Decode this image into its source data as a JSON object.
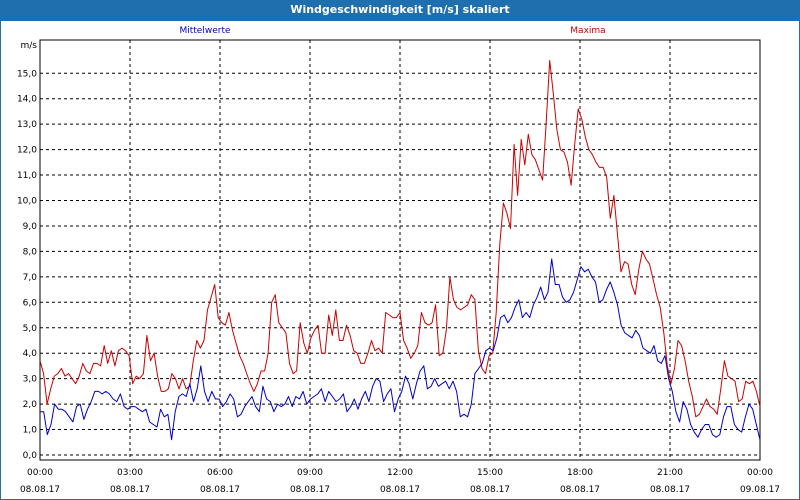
{
  "window": {
    "title": "Windgeschwindigkeit [m/s] skaliert"
  },
  "chart_data": {
    "type": "line",
    "title": "Windgeschwindigkeit [m/s] skaliert",
    "ylabel": "m/s",
    "xlabel": "",
    "ylim": [
      0,
      16
    ],
    "xlim": [
      0,
      24
    ],
    "yticks": [
      "0,0",
      "1,0",
      "2,0",
      "3,0",
      "4,0",
      "5,0",
      "6,0",
      "7,0",
      "8,0",
      "9,0",
      "10,0",
      "11,0",
      "12,0",
      "13,0",
      "14,0",
      "15,0"
    ],
    "xticks": [
      {
        "time": "00:00",
        "date": "08.08.17"
      },
      {
        "time": "03:00",
        "date": "08.08.17"
      },
      {
        "time": "06:00",
        "date": "08.08.17"
      },
      {
        "time": "09:00",
        "date": "08.08.17"
      },
      {
        "time": "12:00",
        "date": "08.08.17"
      },
      {
        "time": "15:00",
        "date": "08.08.17"
      },
      {
        "time": "18:00",
        "date": "08.08.17"
      },
      {
        "time": "21:00",
        "date": "08.08.17"
      },
      {
        "time": "00:00",
        "date": "09.08.17"
      }
    ],
    "grid": true,
    "series": [
      {
        "name": "Mittelwerte",
        "color": "#0000cc",
        "values": [
          1.7,
          1.7,
          0.8,
          1.2,
          2.0,
          1.8,
          1.8,
          1.7,
          1.5,
          1.3,
          1.9,
          2.0,
          1.4,
          1.8,
          2.1,
          2.5,
          2.5,
          2.4,
          2.5,
          2.4,
          2.2,
          2.1,
          2.4,
          1.9,
          1.8,
          1.9,
          1.9,
          1.8,
          1.7,
          1.8,
          1.3,
          1.2,
          1.1,
          1.8,
          1.5,
          1.6,
          0.6,
          1.7,
          2.3,
          2.4,
          2.3,
          2.8,
          2.1,
          2.6,
          3.5,
          2.5,
          2.1,
          2.5,
          2.2,
          2.2,
          1.9,
          2.1,
          2.4,
          2.2,
          1.5,
          1.6,
          1.9,
          2.1,
          2.3,
          1.9,
          1.7,
          2.7,
          2.2,
          2.1,
          1.7,
          2.0,
          1.9,
          2.0,
          2.3,
          1.9,
          2.3,
          2.2,
          2.5,
          2.0,
          2.2,
          2.3,
          2.4,
          2.6,
          2.1,
          2.5,
          2.3,
          2.1,
          2.2,
          2.4,
          1.7,
          1.9,
          2.2,
          1.8,
          2.2,
          2.5,
          2.1,
          2.7,
          3.0,
          2.9,
          2.1,
          2.4,
          2.6,
          1.7,
          2.2,
          2.5,
          3.1,
          2.8,
          2.2,
          2.8,
          3.3,
          3.5,
          2.6,
          2.7,
          3.0,
          2.7,
          2.8,
          2.9,
          2.6,
          2.9,
          2.5,
          1.5,
          1.6,
          1.5,
          2.0,
          3.2,
          3.4,
          3.6,
          4.1,
          4.2,
          4.1,
          4.6,
          5.4,
          5.5,
          5.2,
          5.4,
          5.8,
          6.1,
          5.4,
          5.6,
          5.4,
          5.9,
          6.2,
          6.6,
          6.1,
          6.4,
          7.7,
          6.7,
          6.7,
          6.2,
          6.0,
          6.1,
          6.4,
          6.9,
          7.4,
          7.2,
          7.3,
          7.0,
          6.8,
          6.0,
          6.1,
          6.5,
          6.8,
          6.4,
          5.9,
          5.1,
          4.8,
          4.7,
          4.6,
          4.9,
          4.7,
          4.2,
          4.1,
          4.0,
          4.3,
          3.7,
          3.6,
          3.9,
          3.0,
          2.5,
          1.7,
          1.3,
          2.1,
          1.8,
          1.2,
          0.9,
          0.7,
          1.0,
          1.2,
          1.2,
          0.8,
          0.7,
          0.8,
          1.5,
          1.9,
          1.9,
          1.2,
          1.0,
          0.9,
          1.5,
          2.0,
          1.8,
          1.2,
          0.6
        ]
      },
      {
        "name": "Maxima",
        "color": "#cc0000",
        "values": [
          3.7,
          3.2,
          2.0,
          2.6,
          3.1,
          3.2,
          3.4,
          3.1,
          3.2,
          3.0,
          2.8,
          3.1,
          3.6,
          3.3,
          3.2,
          3.6,
          3.6,
          3.5,
          4.3,
          3.6,
          4.1,
          3.5,
          4.1,
          4.2,
          4.1,
          3.9,
          2.8,
          3.1,
          3.0,
          3.2,
          4.7,
          3.7,
          4.0,
          3.1,
          2.5,
          2.5,
          2.6,
          3.2,
          3.0,
          2.6,
          3.0,
          2.6,
          2.7,
          3.7,
          4.5,
          4.2,
          4.5,
          5.7,
          6.2,
          6.7,
          5.4,
          5.2,
          5.1,
          5.6,
          4.9,
          4.4,
          3.9,
          3.6,
          3.2,
          2.8,
          2.5,
          2.8,
          3.3,
          3.3,
          4.0,
          6.0,
          6.3,
          5.2,
          5.0,
          4.8,
          3.6,
          3.2,
          3.3,
          5.2,
          4.4,
          4.0,
          4.6,
          4.9,
          5.1,
          4.0,
          4.0,
          5.5,
          4.7,
          5.7,
          4.5,
          4.5,
          5.1,
          4.7,
          4.1,
          4.0,
          3.6,
          3.6,
          4.0,
          4.5,
          4.1,
          4.2,
          4.0,
          5.6,
          5.5,
          5.4,
          5.4,
          5.6,
          4.5,
          4.2,
          3.8,
          4.0,
          4.3,
          5.6,
          5.2,
          5.1,
          5.2,
          5.9,
          3.9,
          4.0,
          4.9,
          7.0,
          6.1,
          5.8,
          5.7,
          5.8,
          5.9,
          6.3,
          6.1,
          4.1,
          3.4,
          3.2,
          3.9,
          4.0,
          5.6,
          8.3,
          9.9,
          9.5,
          8.9,
          12.2,
          10.2,
          12.4,
          11.4,
          12.6,
          11.8,
          11.6,
          11.2,
          10.8,
          13.0,
          15.5,
          14.2,
          12.8,
          12.0,
          11.9,
          11.5,
          10.6,
          12.2,
          13.6,
          13.2,
          12.5,
          12.0,
          11.8,
          11.5,
          11.3,
          11.3,
          10.9,
          9.3,
          10.2,
          8.7,
          7.2,
          7.6,
          7.5,
          6.7,
          6.3,
          7.3,
          8.0,
          7.7,
          7.5,
          6.9,
          6.3,
          5.8,
          4.8,
          3.5,
          2.8,
          3.4,
          4.5,
          4.3,
          3.7,
          2.9,
          2.3,
          1.5,
          1.6,
          1.9,
          2.2,
          1.9,
          1.8,
          1.6,
          2.6,
          3.7,
          3.1,
          3.0,
          2.9,
          2.1,
          2.2,
          2.9,
          2.8,
          2.9,
          2.5,
          1.9
        ]
      }
    ]
  }
}
